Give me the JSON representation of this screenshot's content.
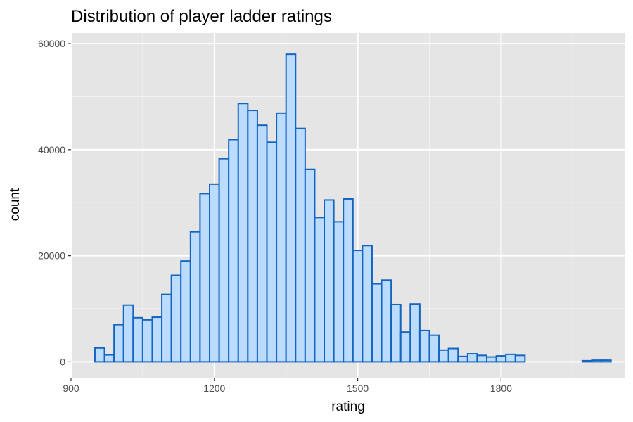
{
  "chart_data": {
    "type": "histogram",
    "title": "Distribution of player ladder ratings",
    "xlabel": "rating",
    "ylabel": "count",
    "xlim": [
      900,
      2060
    ],
    "ylim": [
      -3000,
      62000
    ],
    "x_ticks": [
      900,
      1200,
      1500,
      1800
    ],
    "y_ticks": [
      0,
      20000,
      40000,
      60000
    ],
    "x_tick_labels": [
      "900",
      "1200",
      "1500",
      "1800"
    ],
    "y_tick_labels": [
      "0",
      "20000",
      "40000",
      "60000"
    ],
    "bin_width": 20,
    "bins_start": [
      950,
      970,
      990,
      1010,
      1030,
      1050,
      1070,
      1090,
      1110,
      1130,
      1150,
      1170,
      1190,
      1210,
      1230,
      1250,
      1270,
      1290,
      1310,
      1330,
      1350,
      1370,
      1390,
      1410,
      1430,
      1450,
      1470,
      1490,
      1510,
      1530,
      1550,
      1570,
      1590,
      1610,
      1630,
      1650,
      1670,
      1690,
      1710,
      1730,
      1750,
      1770,
      1790,
      1810,
      1830,
      1850,
      1870,
      1890,
      1910,
      1930,
      1950,
      1970,
      1990,
      2010
    ],
    "counts": [
      2600,
      1300,
      7000,
      10700,
      8300,
      7900,
      8400,
      12700,
      16300,
      19000,
      24500,
      31700,
      33500,
      38300,
      41900,
      48700,
      47400,
      44600,
      41400,
      46900,
      58000,
      44000,
      36300,
      27200,
      30500,
      26400,
      30700,
      21000,
      21900,
      14700,
      15400,
      10800,
      5600,
      10900,
      5900,
      5000,
      2200,
      2500,
      1000,
      1500,
      1200,
      900,
      1100,
      1400,
      1200,
      0,
      0,
      0,
      0,
      0,
      0,
      200,
      300,
      300
    ],
    "grid": true,
    "legend": "none",
    "colors": {
      "panel_background": "#e5e5e5",
      "grid_major": "#ffffff",
      "grid_minor": "#f2f2f2",
      "bar_fill": "#bcdcff",
      "bar_outline": "#1565c0"
    }
  }
}
